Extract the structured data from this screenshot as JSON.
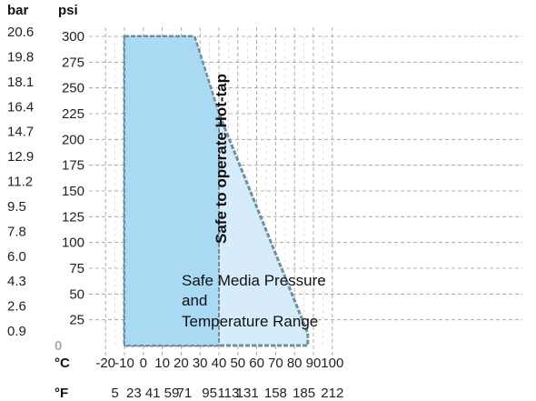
{
  "chart_data": {
    "type": "area",
    "title": "",
    "units": {
      "left_outer": "bar",
      "left_inner": "psi",
      "x_primary": "°C",
      "x_secondary": "°F"
    },
    "y_psi_ticks": [
      "300",
      "275",
      "250",
      "225",
      "200",
      "175",
      "150",
      "125",
      "100",
      "75",
      "50",
      "25"
    ],
    "y_bar_ticks": [
      "20.6",
      "19.8",
      "18.1",
      "16.4",
      "14.7",
      "12.9",
      "11.2",
      "9.5",
      "7.8",
      "6.0",
      "4.3",
      "2.6",
      "0.9"
    ],
    "y_zero_label": "0",
    "x_c_ticks": [
      "-20",
      "-10",
      "0",
      "10",
      "20",
      "30",
      "40",
      "50",
      "60",
      "70",
      "80",
      "90",
      "100"
    ],
    "x_f_ticks": [
      "5",
      "23",
      "41",
      "59",
      "71",
      "95",
      "113",
      "131",
      "158",
      "185",
      "212"
    ],
    "xlim_c": [
      -20,
      100
    ],
    "ylim_psi": [
      0,
      300
    ],
    "grid": true,
    "series": [
      {
        "name": "Safe Media Pressure and Temperature Range",
        "x": [
          -10,
          27,
          40,
          87,
          87,
          -10
        ],
        "y": [
          300,
          300,
          225,
          12,
          0,
          0
        ],
        "color": "#d6ecfa"
      },
      {
        "name": "Safe to operate Hot-tap",
        "x": [
          -10,
          27,
          40,
          40,
          -10
        ],
        "y": [
          300,
          300,
          225,
          0,
          0
        ],
        "color": "#a9d9f3"
      }
    ],
    "annotations": {
      "media_line1": "Safe Media Pressure",
      "media_line2": "and",
      "media_line3": "Temperature Range",
      "hot_tap": "Safe to operate Hot-tap"
    },
    "colors": {
      "outline": "#6f8fa0",
      "grid": "#9a9a9a"
    }
  }
}
